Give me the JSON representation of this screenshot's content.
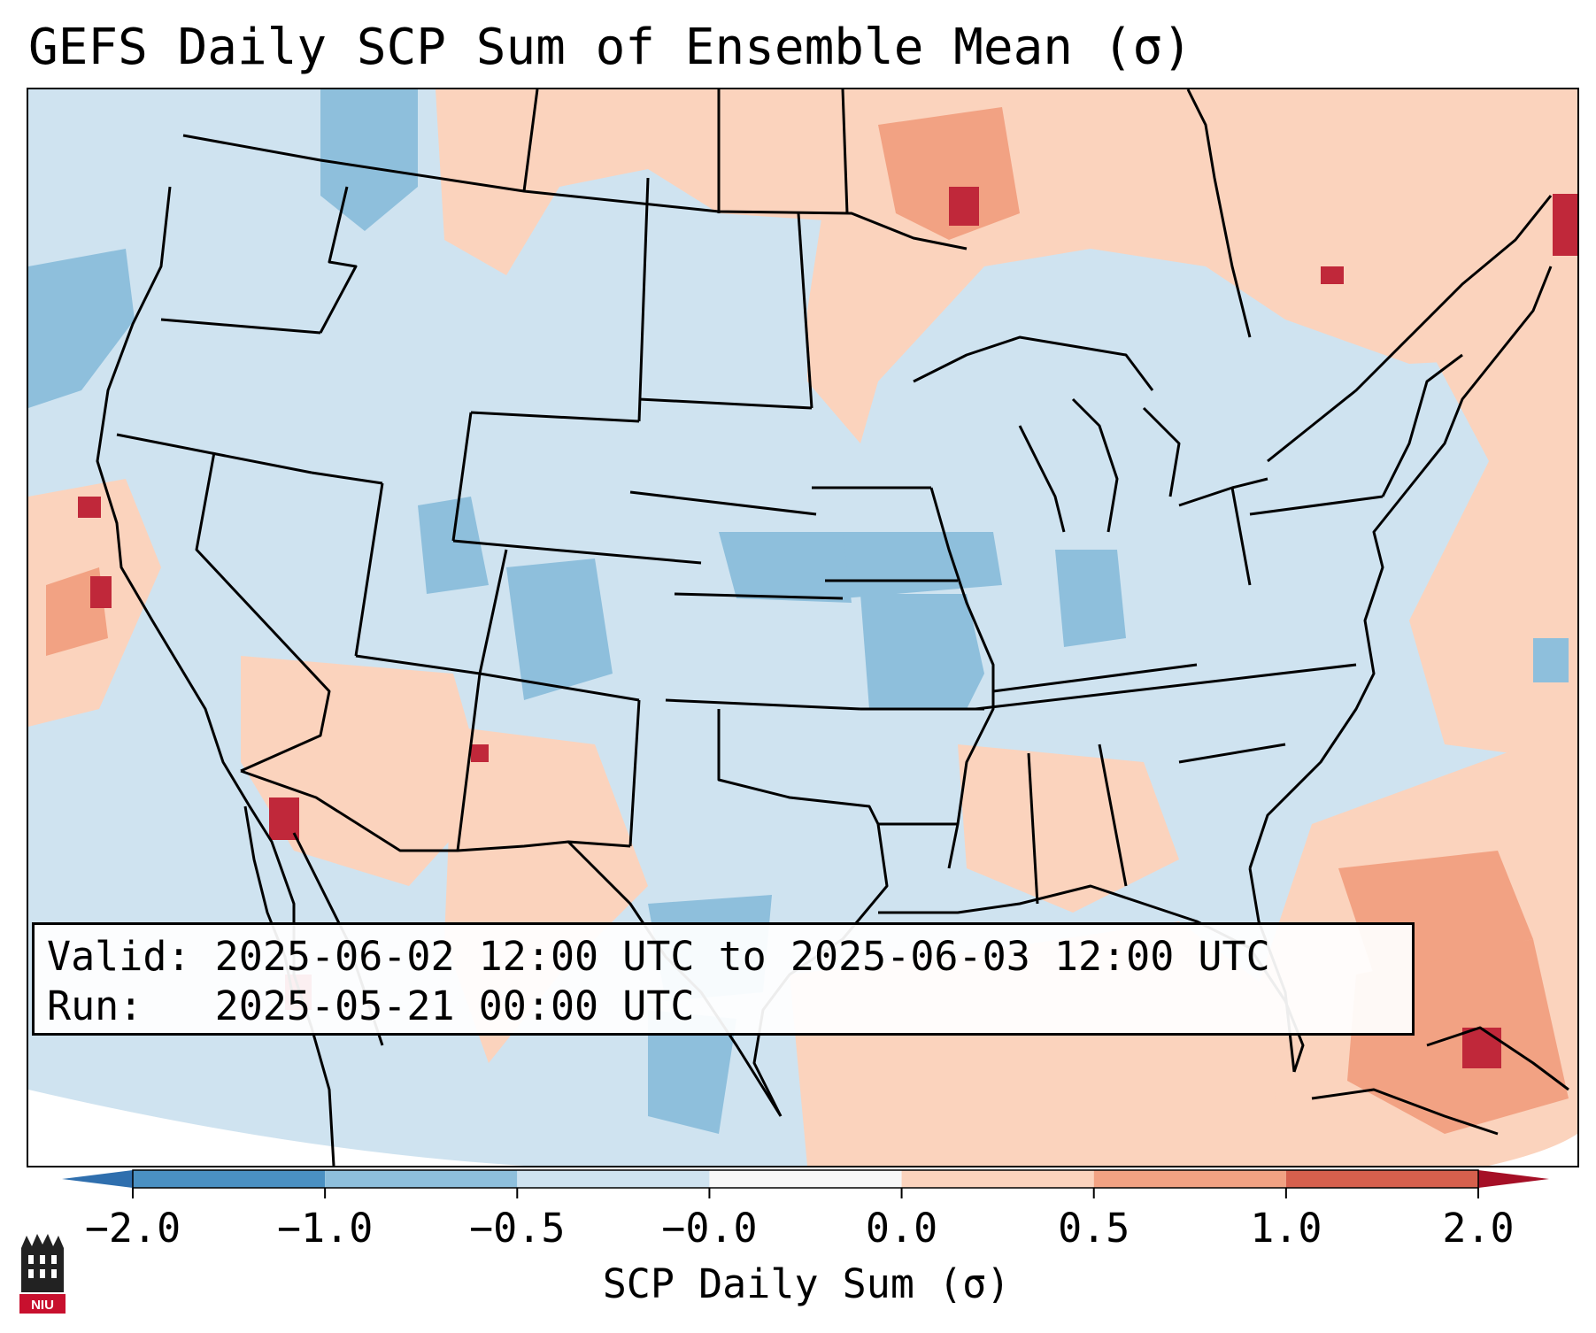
{
  "title": "GEFS Daily SCP Sum of Ensemble Mean (σ)",
  "info": {
    "valid_line": "Valid: 2025-06-02 12:00 UTC to 2025-06-03 12:00 UTC",
    "run_line": "Run:   2025-05-21 00:00 UTC"
  },
  "colorbar": {
    "label": "SCP Daily Sum (σ)",
    "ticks": [
      "−2.0",
      "−1.0",
      "−0.5",
      "−0.0",
      "0.0",
      "0.5",
      "1.0",
      "2.0"
    ],
    "bin_colors": [
      "#4a90c2",
      "#8ebfdc",
      "#cfe3f0",
      "#f7f7f7",
      "#fbd3bd",
      "#f2a283",
      "#d6604d",
      "#b2182b"
    ],
    "extend_low_color": "#2f6fae",
    "extend_high_color": "#a50f26"
  },
  "colors": {
    "near_zero_negative": "#cfe3f0",
    "near_zero_positive": "#fbd3bd",
    "moderate_negative": "#8ebfdc",
    "moderate_positive": "#f2a283",
    "strong_positive": "#c0283a"
  },
  "logo": {
    "text": "NIU",
    "icon": "niu-castle-logo-icon"
  }
}
